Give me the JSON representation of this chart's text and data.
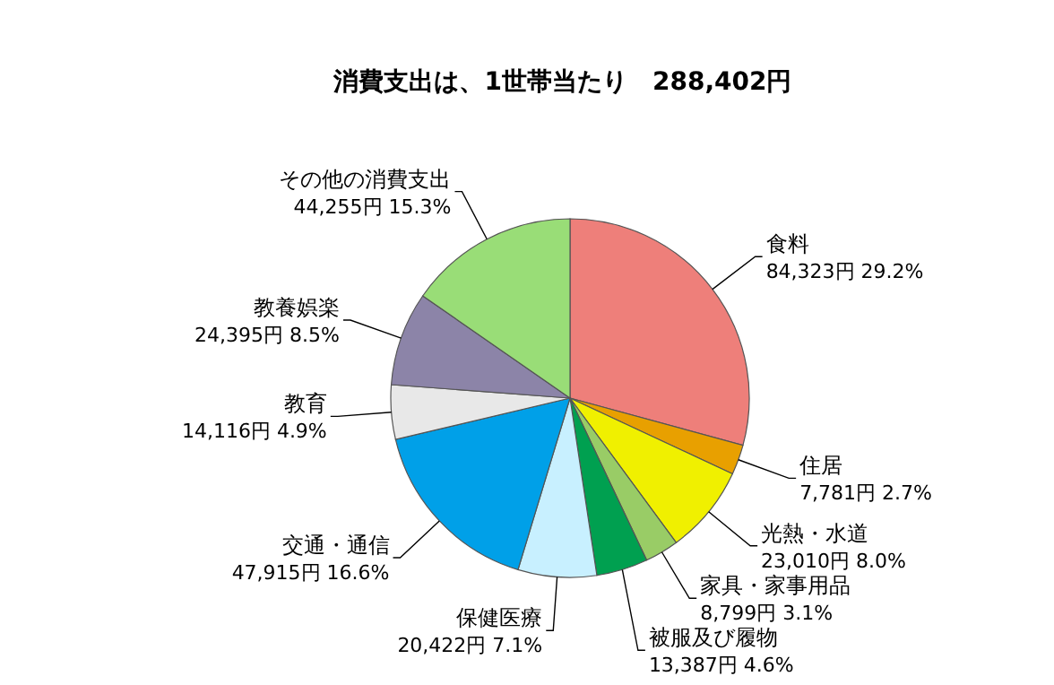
{
  "chart_data": {
    "type": "pie",
    "title": "消費支出は、1世帯当たり　288,402円",
    "categories": [
      "食料",
      "住居",
      "光熱・水道",
      "家具・家事用品",
      "被服及び履物",
      "保健医療",
      "交通・通信",
      "教育",
      "教養娯楽",
      "その他の消費支出"
    ],
    "values": [
      84323,
      7781,
      23010,
      8799,
      13387,
      20422,
      47915,
      14116,
      24395,
      44255
    ],
    "value_labels": [
      "84,323円 29.2%",
      "7,781円 2.7%",
      "23,010円 8.0%",
      "8,799円 3.1%",
      "13,387円 4.6%",
      "20,422円 7.1%",
      "47,915円 16.6%",
      "14,116円 4.9%",
      "24,395円 8.5%",
      "44,255円 15.3%"
    ],
    "colors": [
      "#ee7f7a",
      "#e8a000",
      "#f0f000",
      "#99cc66",
      "#00a050",
      "#c8f0ff",
      "#00a0e8",
      "#e8e8e8",
      "#8c84a8",
      "#99dd77"
    ]
  }
}
